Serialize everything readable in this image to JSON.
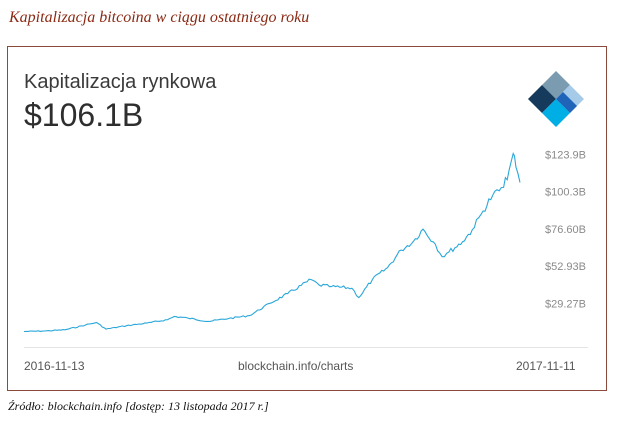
{
  "caption": "Kapitalizacja bitcoina w ciągu ostatniego roku",
  "card": {
    "metric_label": "Kapitalizacja rynkowa",
    "metric_value": "$106.1B",
    "footer_left": "2016-11-13",
    "footer_center": "blockchain.info/charts",
    "footer_right": "2017-11-11"
  },
  "source": "Źródło: blockchain.info [dostęp: 13 listopada 2017 r.]",
  "colors": {
    "line": "#2aa7d9",
    "caption": "#8b2a14",
    "frame_border": "#8b4a3c",
    "logo_dark": "#153a5b",
    "logo_blue": "#1f64b9",
    "logo_cyan": "#00aee6",
    "logo_grey": "#7b9bb1",
    "logo_light": "#a6cbe9"
  },
  "chart_data": {
    "type": "line",
    "x_start": "2016-11-13",
    "x_end": "2017-11-11",
    "y_ticks": [
      "$123.9B",
      "$100.3B",
      "$76.60B",
      "$52.93B",
      "$29.27B"
    ],
    "y_tick_values": [
      123.9,
      100.3,
      76.6,
      52.93,
      29.27
    ],
    "series": [
      {
        "x": [
          "2016-11-13",
          "2016-11-28",
          "2016-12-13",
          "2016-12-28",
          "2017-01-05",
          "2017-01-12",
          "2017-01-27",
          "2017-02-11",
          "2017-02-26",
          "2017-03-03",
          "2017-03-13",
          "2017-03-28",
          "2017-04-12",
          "2017-04-27",
          "2017-05-12",
          "2017-05-25",
          "2017-06-11",
          "2017-06-17",
          "2017-06-26",
          "2017-07-11",
          "2017-07-16",
          "2017-07-26",
          "2017-08-06",
          "2017-08-16",
          "2017-08-25",
          "2017-09-01",
          "2017-09-10",
          "2017-09-15",
          "2017-09-20",
          "2017-09-30",
          "2017-10-07",
          "2017-10-15",
          "2017-10-22",
          "2017-10-30",
          "2017-11-03",
          "2017-11-06",
          "2017-11-08",
          "2017-11-11"
        ],
        "y": [
          11.5,
          11.8,
          12.6,
          15.6,
          17.2,
          13.0,
          15.2,
          16.8,
          19.0,
          21.0,
          20.0,
          17.9,
          19.8,
          21.6,
          29.4,
          35.5,
          44.5,
          41.0,
          40.0,
          39.0,
          33.0,
          44.5,
          52.0,
          63.2,
          68.7,
          76.5,
          67.0,
          59.0,
          62.0,
          68.5,
          76.0,
          88.0,
          98.0,
          103.0,
          114.0,
          124.5,
          116.0,
          106.1
        ]
      }
    ]
  }
}
